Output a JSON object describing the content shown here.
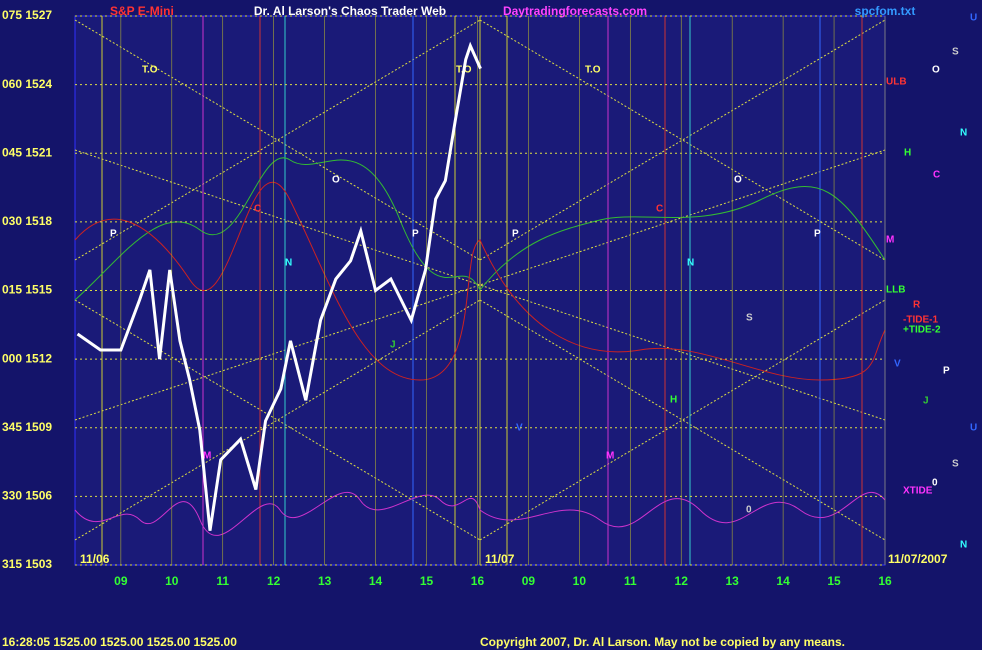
{
  "chart_data": {
    "type": "line",
    "title": "Dr. Al Larson's Chaos Trader Web",
    "subtitle": "Daytradingforecasts.com",
    "source": "spcfom.txt",
    "x": [
      8.15,
      8.6,
      9.0,
      9.37,
      9.57,
      9.76,
      9.96,
      10.16,
      10.35,
      10.55,
      10.75,
      10.96,
      11.35,
      11.65,
      11.84,
      12.14,
      12.33,
      12.63,
      12.92,
      13.22,
      13.51,
      13.71,
      14.0,
      14.3,
      14.7,
      14.98,
      15.18,
      15.37,
      15.57,
      15.77,
      15.86,
      16.06
    ],
    "series": [
      {
        "name": "S&P E-Mini",
        "color": "#ffffff",
        "values": [
          1513.1,
          1512.4,
          1512.4,
          1514.6,
          1515.9,
          1512.0,
          1515.9,
          1512.8,
          1511.1,
          1508.9,
          1504.5,
          1507.6,
          1508.5,
          1506.3,
          1509.3,
          1510.7,
          1512.8,
          1510.2,
          1513.7,
          1515.5,
          1516.3,
          1517.6,
          1515.0,
          1515.5,
          1513.7,
          1515.9,
          1519.0,
          1519.8,
          1522.5,
          1525.1,
          1525.7,
          1524.7
        ]
      }
    ],
    "xlim": [
      8.1,
      24.0
    ],
    "xticks": [
      {
        "value": 9,
        "label": "09"
      },
      10,
      11,
      12,
      13,
      14,
      15,
      16,
      {
        "value": 17,
        "label": "09"
      },
      {
        "value": 18,
        "label": "10"
      },
      {
        "value": 19,
        "label": "11"
      },
      {
        "value": 20,
        "label": "12"
      },
      {
        "value": 21,
        "label": "13"
      },
      {
        "value": 22,
        "label": "14"
      },
      {
        "value": 23,
        "label": "15"
      },
      {
        "value": 24,
        "label": "16"
      }
    ],
    "ylim": [
      1503,
      1527
    ],
    "yticks": [
      {
        "value": 1527,
        "label": "075 1527"
      },
      {
        "value": 1524,
        "label": "060 1524"
      },
      {
        "value": 1521,
        "label": "045 1521"
      },
      {
        "value": 1518,
        "label": "030 1518"
      },
      {
        "value": 1515,
        "label": "015 1515"
      },
      {
        "value": 1512,
        "label": "000 1512"
      },
      {
        "value": 1509,
        "label": "345 1509"
      },
      {
        "value": 1506,
        "label": "330 1506"
      },
      {
        "value": 1503,
        "label": "315 1503"
      }
    ],
    "grid": true,
    "date_labels": [
      "11/06",
      "11/07",
      "11/07/2007"
    ],
    "status": "16:28:05  1525.00 1525.00 1525.00 1525.00",
    "copyright": "Copyright 2007, Dr. Al Larson. May not be copied by any means.",
    "annotations": [
      "T.O",
      "T.O",
      "T.O",
      "ULB",
      "H",
      "C",
      "M",
      "LLB",
      "R",
      "-TIDE-1",
      "+TIDE-2",
      "V",
      "P",
      "J",
      "U",
      "S",
      "XTIDE",
      "N",
      "O",
      "C",
      "N",
      "O",
      "P",
      "P",
      "P",
      "J",
      "M",
      "H",
      "C",
      "N",
      "O",
      "P",
      "S",
      "V",
      "M",
      "0",
      "0",
      "U",
      "S",
      "N"
    ]
  }
}
